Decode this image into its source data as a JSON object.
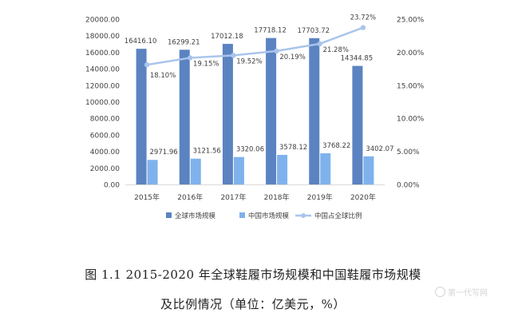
{
  "chart_data": {
    "type": "bar",
    "categories": [
      "2015年",
      "2016年",
      "2017年",
      "2018年",
      "2019年",
      "2020年"
    ],
    "series": [
      {
        "name": "全球市场规模",
        "type": "bar",
        "axis": "left",
        "values": [
          16416.1,
          16299.21,
          17012.18,
          17718.12,
          17703.72,
          14344.85
        ],
        "labels": [
          "16416.10",
          "16299.21",
          "17012.18",
          "17718.12",
          "17703.72",
          "14344.85"
        ]
      },
      {
        "name": "中国市场规模",
        "type": "bar",
        "axis": "left",
        "values": [
          2971.96,
          3121.56,
          3320.06,
          3578.12,
          3768.22,
          3402.07
        ],
        "labels": [
          "2971.96",
          "3121.56",
          "3320.06",
          "3578.12",
          "3768.22",
          "3402.07"
        ]
      },
      {
        "name": "中国占全球比例",
        "type": "line",
        "axis": "right",
        "values": [
          18.1,
          19.15,
          19.52,
          20.19,
          21.28,
          23.72
        ],
        "labels": [
          "18.10%",
          "19.15%",
          "19.52%",
          "20.19%",
          "21.28%",
          "23.72%"
        ]
      }
    ],
    "y_left": {
      "range": [
        0,
        20000
      ],
      "ticks": [
        "0.00",
        "2000.00",
        "4000.00",
        "6000.00",
        "8000.00",
        "10000.00",
        "12000.00",
        "14000.00",
        "16000.00",
        "18000.00",
        "20000.00"
      ]
    },
    "y_right": {
      "range": [
        0,
        25
      ],
      "ticks": [
        "0.00%",
        "5.00%",
        "10.00%",
        "15.00%",
        "20.00%",
        "25.00%"
      ]
    },
    "grid": false,
    "legend_position": "bottom",
    "colors": {
      "global": "#5b83c1",
      "china": "#7fb2ec",
      "ratio": "#a9c5ec",
      "text": "#404040",
      "axis": "#d9d9d9"
    }
  },
  "caption": {
    "line1": "图 1.1 2015-2020 年全球鞋履市场规模和中国鞋履市场规模",
    "line2": "及比例情况（单位：亿美元，%）"
  },
  "watermark": {
    "text": "第一代写网"
  }
}
